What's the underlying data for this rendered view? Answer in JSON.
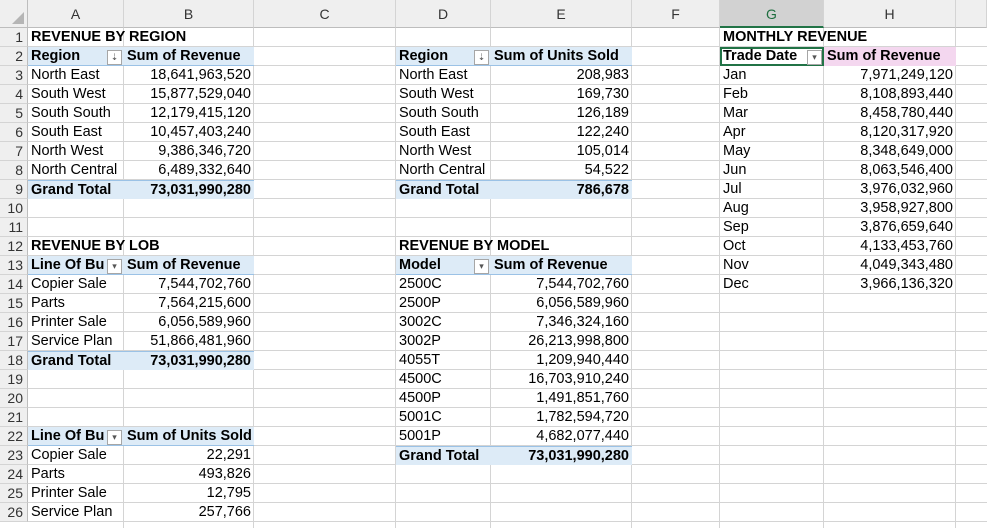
{
  "columns": [
    "A",
    "B",
    "C",
    "D",
    "E",
    "F",
    "G",
    "H"
  ],
  "rows": [
    "1",
    "2",
    "3",
    "4",
    "5",
    "6",
    "7",
    "8",
    "9",
    "10",
    "11",
    "12",
    "13",
    "14",
    "15",
    "16",
    "17",
    "18",
    "19",
    "20",
    "21",
    "22",
    "23",
    "24",
    "25",
    "26"
  ],
  "region_revenue": {
    "title": "REVENUE BY REGION",
    "col1": "Region",
    "col2": "Sum of Revenue",
    "rows": [
      [
        "North East",
        "18,641,963,520"
      ],
      [
        "South West",
        "15,877,529,040"
      ],
      [
        "South South",
        "12,179,415,120"
      ],
      [
        "South East",
        "10,457,403,240"
      ],
      [
        "North West",
        "9,386,346,720"
      ],
      [
        "North Central",
        "6,489,332,640"
      ]
    ],
    "total_label": "Grand Total",
    "total": "73,031,990,280"
  },
  "region_units": {
    "col1": "Region",
    "col2": "Sum of Units Sold",
    "rows": [
      [
        "North East",
        "208,983"
      ],
      [
        "South West",
        "169,730"
      ],
      [
        "South South",
        "126,189"
      ],
      [
        "South East",
        "122,240"
      ],
      [
        "North West",
        "105,014"
      ],
      [
        "North Central",
        "54,522"
      ]
    ],
    "total_label": "Grand Total",
    "total": "786,678"
  },
  "monthly_revenue": {
    "title": "MONTHLY REVENUE",
    "col1": "Trade Date",
    "col2": "Sum of Revenue",
    "rows": [
      [
        "Jan",
        "7,971,249,120"
      ],
      [
        "Feb",
        "8,108,893,440"
      ],
      [
        "Mar",
        "8,458,780,440"
      ],
      [
        "Apr",
        "8,120,317,920"
      ],
      [
        "May",
        "8,348,649,000"
      ],
      [
        "Jun",
        "8,063,546,400"
      ],
      [
        "Jul",
        "3,976,032,960"
      ],
      [
        "Aug",
        "3,958,927,800"
      ],
      [
        "Sep",
        "3,876,659,640"
      ],
      [
        "Oct",
        "4,133,453,760"
      ],
      [
        "Nov",
        "4,049,343,480"
      ],
      [
        "Dec",
        "3,966,136,320"
      ]
    ]
  },
  "lob_revenue": {
    "title": "REVENUE BY LOB",
    "col1": "Line Of Bu",
    "col2": "Sum of Revenue",
    "rows": [
      [
        "Copier Sale",
        "7,544,702,760"
      ],
      [
        "Parts",
        "7,564,215,600"
      ],
      [
        "Printer Sale",
        "6,056,589,960"
      ],
      [
        "Service Plan",
        "51,866,481,960"
      ]
    ],
    "total_label": "Grand Total",
    "total": "73,031,990,280"
  },
  "model_revenue": {
    "title": "REVENUE BY MODEL",
    "col1": "Model",
    "col2": "Sum of Revenue",
    "rows": [
      [
        "2500C",
        "7,544,702,760"
      ],
      [
        "2500P",
        "6,056,589,960"
      ],
      [
        "3002C",
        "7,346,324,160"
      ],
      [
        "3002P",
        "26,213,998,800"
      ],
      [
        "4055T",
        "1,209,940,440"
      ],
      [
        "4500C",
        "16,703,910,240"
      ],
      [
        "4500P",
        "1,491,851,760"
      ],
      [
        "5001C",
        "1,782,594,720"
      ],
      [
        "5001P",
        "4,682,077,440"
      ]
    ],
    "total_label": "Grand Total",
    "total": "73,031,990,280"
  },
  "lob_units": {
    "col1": "Line Of Bu",
    "col2": "Sum of Units Sold",
    "rows": [
      [
        "Copier Sale",
        "22,291"
      ],
      [
        "Parts",
        "493,826"
      ],
      [
        "Printer Sale",
        "12,795"
      ],
      [
        "Service Plan",
        "257,766"
      ]
    ]
  },
  "icons": {
    "filter_sorted": "sort-filter-icon",
    "filter": "filter-dropdown-icon"
  },
  "colors": {
    "pivot_header": "#ddebf7",
    "monthly_header": "#f4d7ef",
    "selection": "#217346"
  }
}
